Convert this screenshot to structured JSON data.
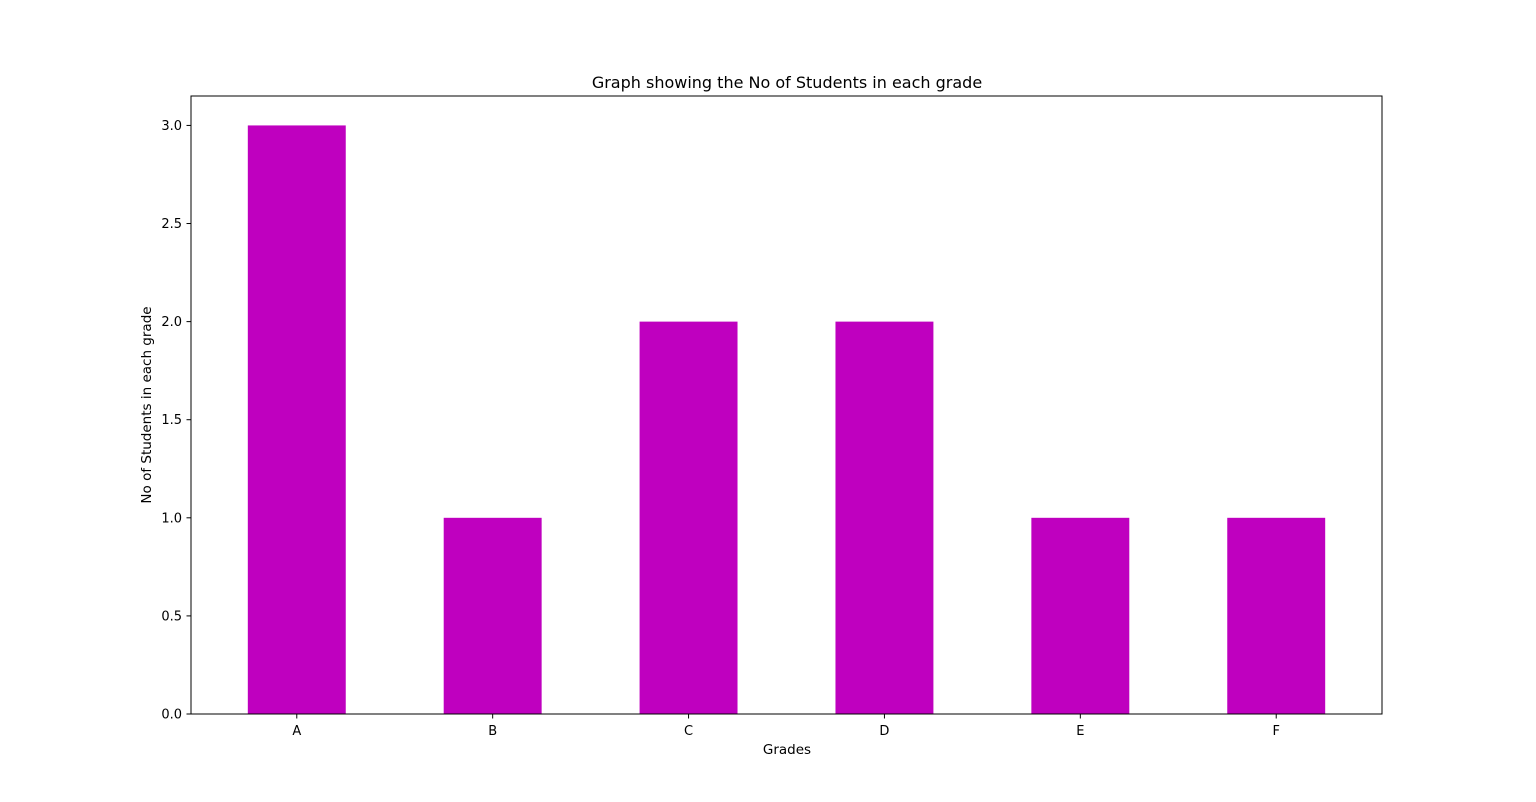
{
  "chart_data": {
    "type": "bar",
    "title": "Graph showing the No of Students in each grade",
    "xlabel": "Grades",
    "ylabel": "No of Students in each grade",
    "categories": [
      "A",
      "B",
      "C",
      "D",
      "E",
      "F"
    ],
    "values": [
      3,
      1,
      2,
      2,
      1,
      1
    ],
    "ylim": [
      0,
      3.15
    ],
    "yticks": [
      "0.0",
      "0.5",
      "1.0",
      "1.5",
      "2.0",
      "2.5",
      "3.0"
    ],
    "bar_color": "#bf00bf",
    "grid": false,
    "legend": "none"
  }
}
